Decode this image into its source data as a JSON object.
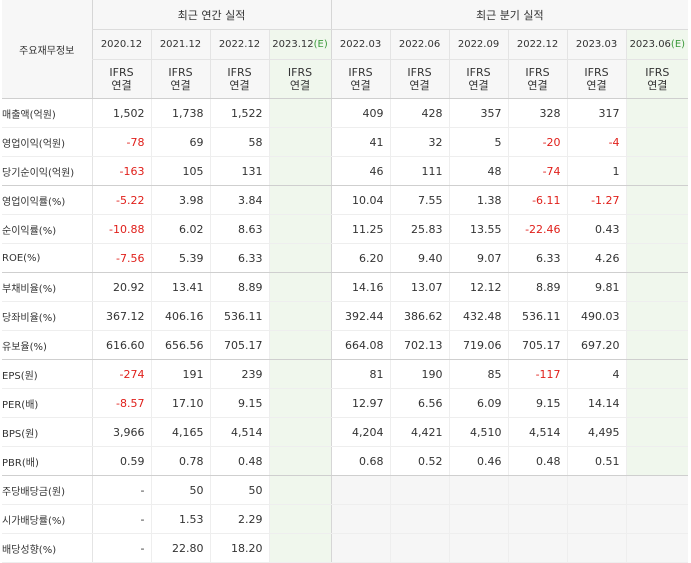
{
  "header": {
    "label": "주요재무정보",
    "annual_title": "최근 연간 실적",
    "quarter_title": "최근 분기 실적",
    "annual_periods": [
      {
        "label": "2020.12",
        "est": ""
      },
      {
        "label": "2021.12",
        "est": ""
      },
      {
        "label": "2022.12",
        "est": ""
      },
      {
        "label": "2023.12",
        "est": "(E)"
      }
    ],
    "quarter_periods": [
      {
        "label": "2022.03",
        "est": ""
      },
      {
        "label": "2022.06",
        "est": ""
      },
      {
        "label": "2022.09",
        "est": ""
      },
      {
        "label": "2022.12",
        "est": ""
      },
      {
        "label": "2023.03",
        "est": ""
      },
      {
        "label": "2023.06",
        "est": "(E)"
      }
    ],
    "basis_line1": "IFRS",
    "basis_line2": "연결"
  },
  "rows": [
    {
      "label": "매출액(억원)",
      "values": [
        "1,502",
        "1,738",
        "1,522",
        "",
        "409",
        "428",
        "357",
        "328",
        "317",
        ""
      ]
    },
    {
      "label": "영업이익(억원)",
      "values": [
        "-78",
        "69",
        "58",
        "",
        "41",
        "32",
        "5",
        "-20",
        "-4",
        ""
      ]
    },
    {
      "label": "당기순이익(억원)",
      "values": [
        "-163",
        "105",
        "131",
        "",
        "46",
        "111",
        "48",
        "-74",
        "1",
        ""
      ]
    },
    {
      "label": "영업이익률(%)",
      "values": [
        "-5.22",
        "3.98",
        "3.84",
        "",
        "10.04",
        "7.55",
        "1.38",
        "-6.11",
        "-1.27",
        ""
      ]
    },
    {
      "label": "순이익률(%)",
      "values": [
        "-10.88",
        "6.02",
        "8.63",
        "",
        "11.25",
        "25.83",
        "13.55",
        "-22.46",
        "0.43",
        ""
      ]
    },
    {
      "label": "ROE(%)",
      "values": [
        "-7.56",
        "5.39",
        "6.33",
        "",
        "6.20",
        "9.40",
        "9.07",
        "6.33",
        "4.26",
        ""
      ]
    },
    {
      "label": "부채비율(%)",
      "values": [
        "20.92",
        "13.41",
        "8.89",
        "",
        "14.16",
        "13.07",
        "12.12",
        "8.89",
        "9.81",
        ""
      ]
    },
    {
      "label": "당좌비율(%)",
      "values": [
        "367.12",
        "406.16",
        "536.11",
        "",
        "392.44",
        "386.62",
        "432.48",
        "536.11",
        "490.03",
        ""
      ]
    },
    {
      "label": "유보율(%)",
      "values": [
        "616.60",
        "656.56",
        "705.17",
        "",
        "664.08",
        "702.13",
        "719.06",
        "705.17",
        "697.20",
        ""
      ]
    },
    {
      "label": "EPS(원)",
      "values": [
        "-274",
        "191",
        "239",
        "",
        "81",
        "190",
        "85",
        "-117",
        "4",
        ""
      ]
    },
    {
      "label": "PER(배)",
      "values": [
        "-8.57",
        "17.10",
        "9.15",
        "",
        "12.97",
        "6.56",
        "6.09",
        "9.15",
        "14.14",
        ""
      ]
    },
    {
      "label": "BPS(원)",
      "values": [
        "3,966",
        "4,165",
        "4,514",
        "",
        "4,204",
        "4,421",
        "4,510",
        "4,514",
        "4,495",
        ""
      ]
    },
    {
      "label": "PBR(배)",
      "values": [
        "0.59",
        "0.78",
        "0.48",
        "",
        "0.68",
        "0.52",
        "0.46",
        "0.48",
        "0.51",
        ""
      ]
    },
    {
      "label": "주당배당금(원)",
      "values": [
        "-",
        "50",
        "50",
        "",
        "",
        "",
        "",
        "",
        "",
        ""
      ]
    },
    {
      "label": "시가배당률(%)",
      "values": [
        "-",
        "1.53",
        "2.29",
        "",
        "",
        "",
        "",
        "",
        "",
        ""
      ]
    },
    {
      "label": "배당성향(%)",
      "values": [
        "-",
        "22.80",
        "18.20",
        "",
        "",
        "",
        "",
        "",
        "",
        ""
      ]
    }
  ],
  "colors": {
    "negative": "#e0201b",
    "basis": "#e8691c",
    "estimate_bg": "#f0f7ed",
    "estimate_mark": "#3c9a3c"
  }
}
